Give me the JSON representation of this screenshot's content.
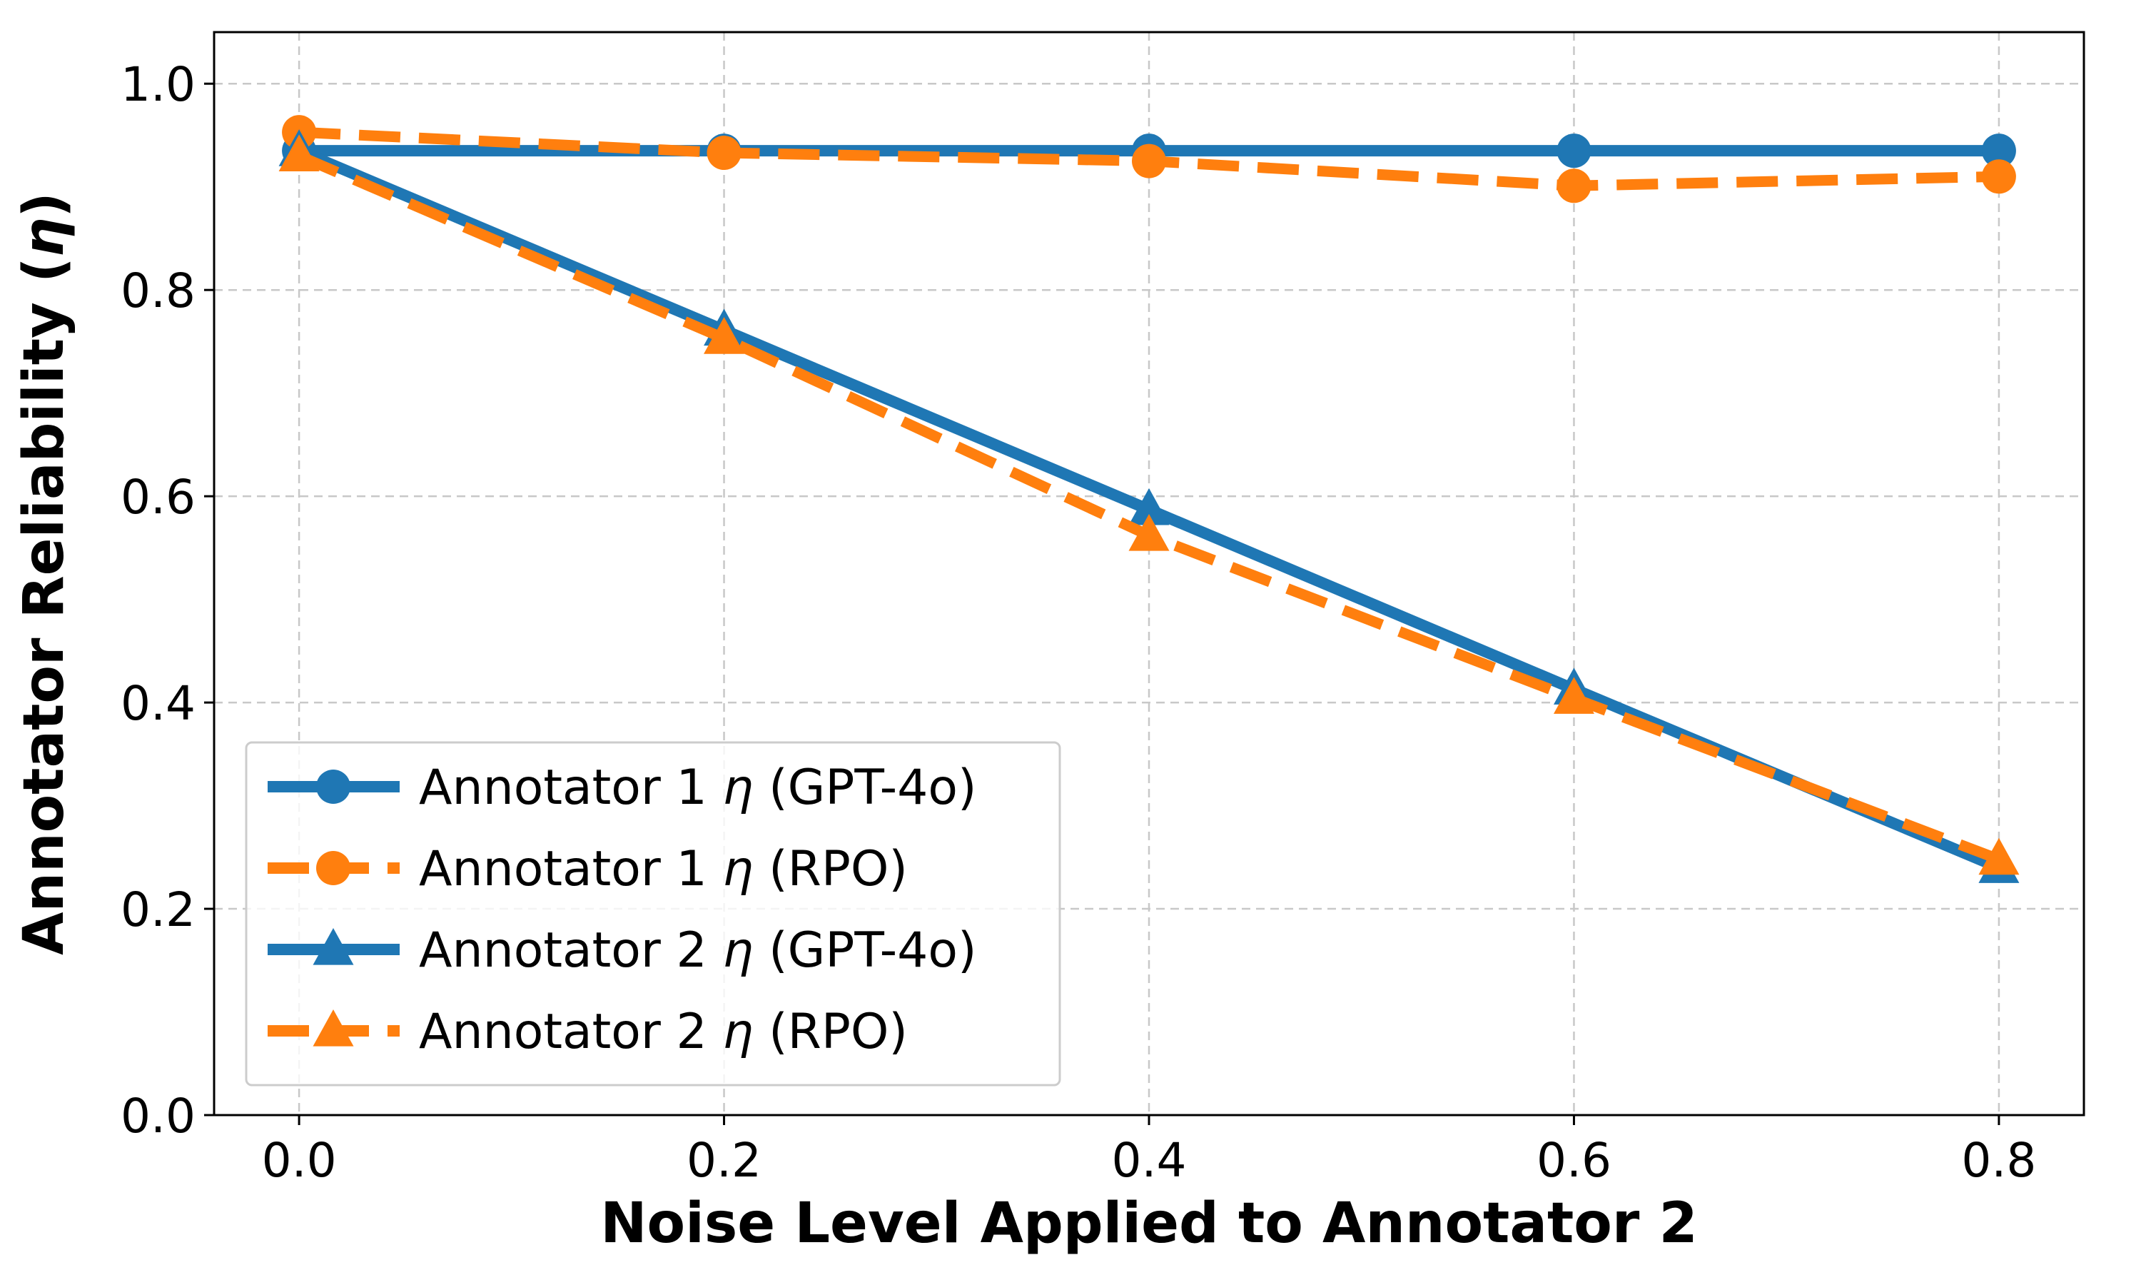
{
  "chart_data": {
    "type": "line",
    "xlabel": "Noise Level Applied to Annotator 2",
    "ylabel_prefix": "Annotator Reliability (",
    "ylabel_symbol": "η",
    "ylabel_suffix": ")",
    "x": [
      0.0,
      0.2,
      0.4,
      0.6,
      0.8
    ],
    "xlim": [
      -0.04,
      0.84
    ],
    "ylim": [
      0.0,
      1.05
    ],
    "xticks": [
      0.0,
      0.2,
      0.4,
      0.6,
      0.8
    ],
    "xtick_labels": [
      "0.0",
      "0.2",
      "0.4",
      "0.6",
      "0.8"
    ],
    "yticks": [
      0.0,
      0.2,
      0.4,
      0.6,
      0.8,
      1.0
    ],
    "ytick_labels": [
      "0.0",
      "0.2",
      "0.4",
      "0.6",
      "0.8",
      "1.0"
    ],
    "grid": true,
    "legend_position": "lower-left",
    "series": [
      {
        "legend_prefix": "Annotator 1 ",
        "legend_symbol": "η",
        "legend_suffix": " (GPT-4o)",
        "values": [
          0.935,
          0.935,
          0.935,
          0.935,
          0.935
        ],
        "color": "#1f77b4",
        "line_style": "solid",
        "marker": "circle"
      },
      {
        "legend_prefix": "Annotator 1 ",
        "legend_symbol": "η",
        "legend_suffix": " (RPO)",
        "values": [
          0.953,
          0.933,
          0.925,
          0.901,
          0.91
        ],
        "color": "#ff7f0e",
        "line_style": "dashed",
        "marker": "circle"
      },
      {
        "legend_prefix": "Annotator 2 ",
        "legend_symbol": "η",
        "legend_suffix": " (GPT-4o)",
        "values": [
          0.935,
          0.761,
          0.587,
          0.413,
          0.24
        ],
        "color": "#1f77b4",
        "line_style": "solid",
        "marker": "triangle"
      },
      {
        "legend_prefix": "Annotator 2 ",
        "legend_symbol": "η",
        "legend_suffix": " (RPO)",
        "values": [
          0.93,
          0.753,
          0.562,
          0.404,
          0.248
        ],
        "color": "#ff7f0e",
        "line_style": "dashed",
        "marker": "triangle"
      }
    ]
  }
}
